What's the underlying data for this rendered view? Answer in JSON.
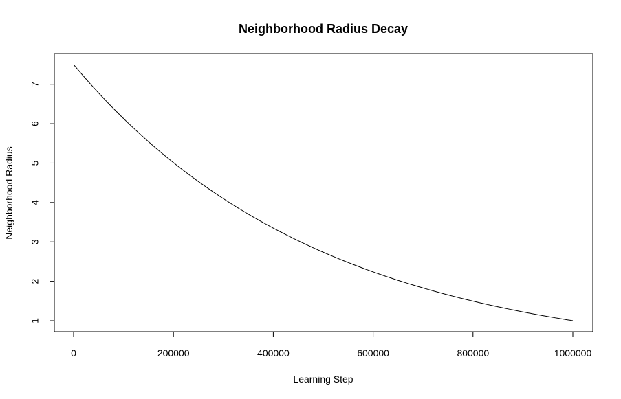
{
  "chart_data": {
    "type": "line",
    "title": "Neighborhood Radius Decay",
    "xlabel": "Learning Step",
    "ylabel": "Neighborhood Radius",
    "xlim": [
      0,
      1000000
    ],
    "ylim": [
      1,
      7.5
    ],
    "grid": false,
    "x_ticks": [
      0,
      200000,
      400000,
      600000,
      800000,
      1000000
    ],
    "x_tick_labels": [
      "0",
      "200000",
      "400000",
      "600000",
      "800000",
      "1000000"
    ],
    "y_ticks": [
      1,
      2,
      3,
      4,
      5,
      6,
      7
    ],
    "y_tick_labels": [
      "1",
      "2",
      "3",
      "4",
      "5",
      "6",
      "7"
    ],
    "series": [
      {
        "color": "#000000",
        "x": [
          0,
          50000,
          100000,
          150000,
          200000,
          250000,
          300000,
          350000,
          400000,
          450000,
          500000,
          550000,
          600000,
          650000,
          700000,
          750000,
          800000,
          850000,
          900000,
          950000,
          1000000
        ],
        "y": [
          7.5,
          6.77,
          6.11,
          5.51,
          4.98,
          4.49,
          4.05,
          3.66,
          3.3,
          2.98,
          2.69,
          2.43,
          2.19,
          1.98,
          1.79,
          1.61,
          1.45,
          1.31,
          1.22,
          1.1,
          1.0
        ]
      }
    ]
  }
}
